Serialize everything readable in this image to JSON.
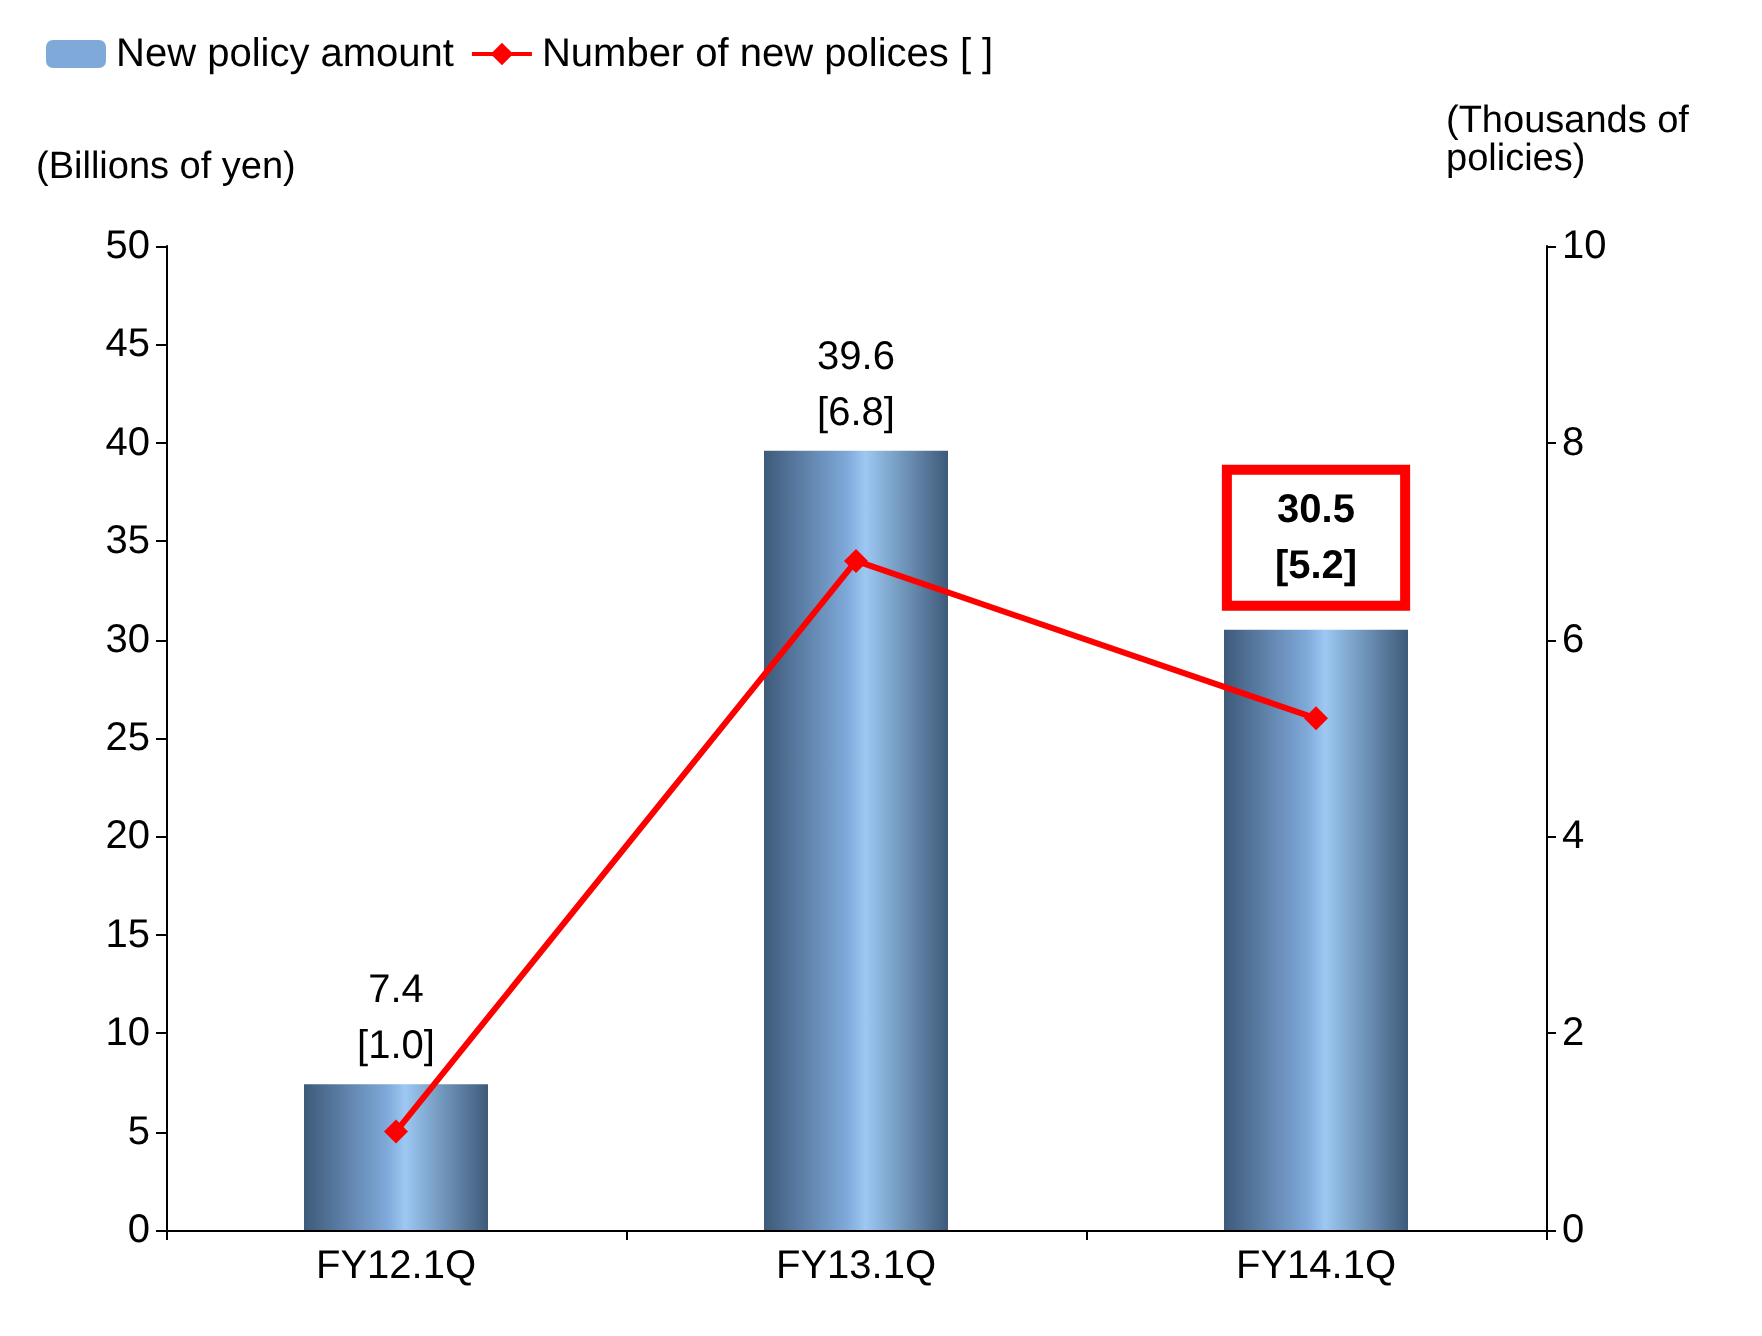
{
  "chart_data": {
    "type": "bar",
    "categories": [
      "FY12.1Q",
      "FY13.1Q",
      "FY14.1Q"
    ],
    "ylabel": "(Billions of yen)",
    "y2label": "(Thousands of\npolicies)",
    "series": [
      {
        "name": "New policy amount",
        "color": "#7fa9d9",
        "values": [
          7.4,
          39.6,
          30.5
        ],
        "value_labels": [
          "7.4",
          "39.6",
          "30.5"
        ]
      },
      {
        "name": "Number of new polices [ ]",
        "type": "line",
        "axis": "y2",
        "color": "#ff0000",
        "marker": "diamond",
        "values": [
          1.0,
          6.8,
          5.2
        ],
        "value_labels": [
          "[1.0]",
          "[6.8]",
          "[5.2]"
        ]
      }
    ],
    "ylim": [
      0,
      50
    ],
    "yticks": [
      0,
      5,
      10,
      15,
      20,
      25,
      30,
      35,
      40,
      45,
      50
    ],
    "y2lim": [
      0,
      10
    ],
    "y2ticks": [
      0,
      2,
      4,
      6,
      8,
      10
    ],
    "grid": false,
    "legend": "top left"
  }
}
